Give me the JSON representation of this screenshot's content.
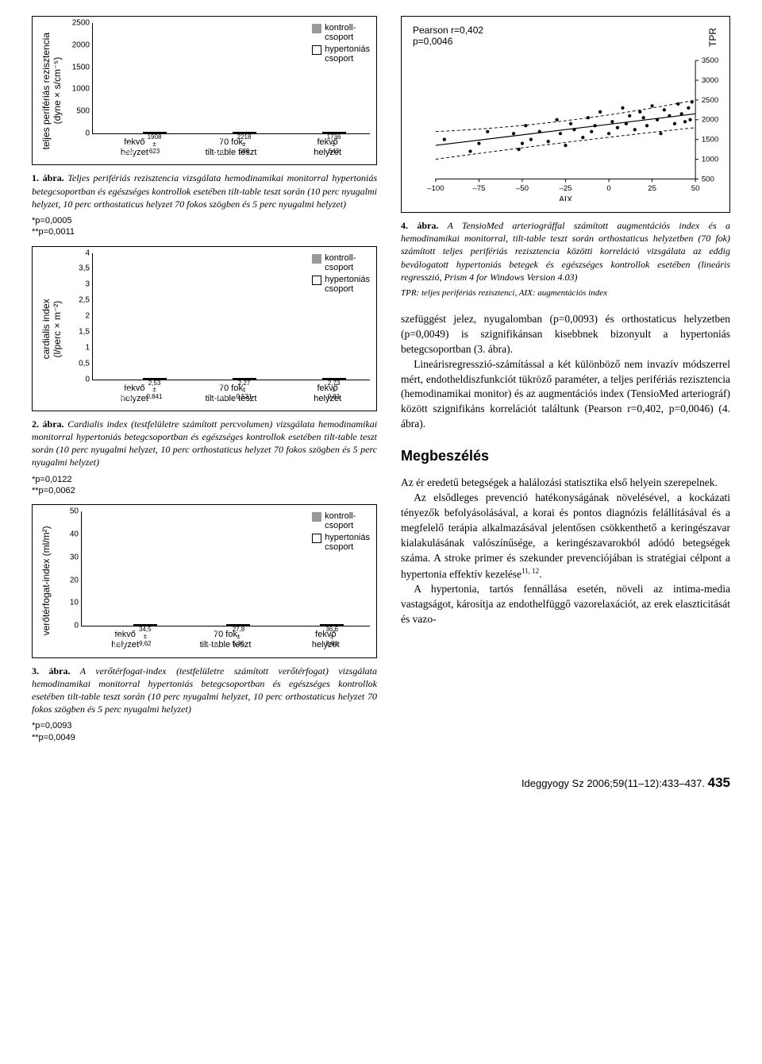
{
  "chart1": {
    "ylabel": "teljes perifériás rezisztencia\n(dyne×s/cm⁻⁵)",
    "ymax": 2500,
    "yticks": [
      0,
      500,
      1000,
      1500,
      2000,
      2500
    ],
    "groups": [
      {
        "k": {
          "v": 1213,
          "se": 298,
          "star": "*"
        },
        "h": {
          "v": 1908,
          "se": 623,
          "star": "*"
        }
      },
      {
        "k": {
          "v": 1580,
          "se": 336,
          "star": "**"
        },
        "h": {
          "v": 2218,
          "se": 589,
          "star": "**"
        }
      },
      {
        "k": {
          "v": 1056,
          "se": 282,
          "star": ""
        },
        "h": {
          "v": 1736,
          "se": 543,
          "star": ""
        }
      }
    ],
    "xlabels": [
      "fekvő\nhelyzet",
      "70 fok\ntilt-table teszt",
      "fekvő\nhelyzet"
    ],
    "legend_k": "kontroll-\ncsoport",
    "legend_h": "hypertoniás\ncsoport",
    "caption": "1. ábra. Teljes perifériás rezisztencia vizsgálata hemodinamikai monitorral hypertoniás betegcsoportban és egészséges kontrollok esetében tilt-table teszt során (10 perc nyugalmi helyzet, 10 perc orthostaticus helyzet 70 fokos szögben és 5 perc nyugalmi helyzet)",
    "p1": "*p=0,0005",
    "p2": "**p=0,0011"
  },
  "chart2": {
    "ylabel": "cardialis index\n(l/perc×m⁻²)",
    "ymax": 4,
    "yticks": [
      0,
      0.5,
      1,
      1.5,
      2,
      2.5,
      3,
      3.5,
      4
    ],
    "groups": [
      {
        "k": {
          "v": 3.39,
          "se": 0.825,
          "star": "*"
        },
        "h": {
          "v": 2.53,
          "se": 0.841,
          "star": "*"
        }
      },
      {
        "k": {
          "v": 2.96,
          "se": 0.645,
          "star": "**"
        },
        "h": {
          "v": 2.27,
          "se": 0.531,
          "star": "**"
        }
      },
      {
        "k": {
          "v": 3.56,
          "se": 0.8,
          "star": ""
        },
        "h": {
          "v": 2.73,
          "se": 0.81,
          "star": ""
        }
      }
    ],
    "xlabels": [
      "fekvő\nhelyzet",
      "70 fok\ntilt-table teszt",
      "fekvő\nhelyzet"
    ],
    "caption": "2. ábra. Cardialis index (testfelületre számított percvolumen) vizsgálata hemodinamikai monitorral hypertoniás betegcsoportban és egészséges kontrollok esetében tilt-table teszt során (10 perc nyugalmi helyzet, 10 perc orthostaticus helyzet 70 fokos szögben és 5 perc nyugalmi helyzet)",
    "p1": "*p=0,0122",
    "p2": "**p=0,0062"
  },
  "chart3": {
    "ylabel": "verőtérfogat-index (ml/m²)",
    "ymax": 50,
    "yticks": [
      0,
      10,
      20,
      30,
      40,
      50
    ],
    "groups": [
      {
        "k": {
          "v": 45.1,
          "se": 10.1,
          "star": "*"
        },
        "h": {
          "v": 34.5,
          "se": 9.62,
          "star": "*"
        }
      },
      {
        "k": {
          "v": 34.7,
          "se": 6.17,
          "star": "**"
        },
        "h": {
          "v": 27.8,
          "se": 5.35,
          "star": "**"
        }
      },
      {
        "k": {
          "v": 48.17,
          "se": 10.4,
          "star": ""
        },
        "h": {
          "v": 36.6,
          "se": 9.81,
          "star": ""
        }
      }
    ],
    "xlabels": [
      "fekvő\nhelyzet",
      "70 fok\ntilt-table teszt",
      "fekvő\nhelyzet"
    ],
    "caption": "3. ábra. A verőtérfogat-index (testfelületre számított verőtérfogat) vizsgálata hemodinamikai monitorral hypertoniás betegcsoportban és egészséges kontrollok esetében tilt-table teszt során (10 perc nyugalmi helyzet, 10 perc orthostaticus helyzet 70 fokos szögben és 5 perc nyugalmi helyzet)",
    "p1": "*p=0,0093",
    "p2": "**p=0,0049"
  },
  "scatter": {
    "pearson": "Pearson r=0,402",
    "pval": "p=0,0046",
    "ylabel_right": "TPR",
    "xlabel": "AIX",
    "yticks": [
      500,
      1000,
      1500,
      2000,
      2500,
      3000,
      3500
    ],
    "xticks": [
      -100,
      -75,
      -50,
      -25,
      0,
      25,
      50
    ],
    "points": [
      [
        -95,
        1500
      ],
      [
        -75,
        1400
      ],
      [
        -80,
        1200
      ],
      [
        -70,
        1700
      ],
      [
        -55,
        1650
      ],
      [
        -50,
        1400
      ],
      [
        -48,
        1850
      ],
      [
        -52,
        1250
      ],
      [
        -45,
        1500
      ],
      [
        -40,
        1700
      ],
      [
        -35,
        1450
      ],
      [
        -30,
        2000
      ],
      [
        -28,
        1650
      ],
      [
        -25,
        1350
      ],
      [
        -22,
        1900
      ],
      [
        -20,
        1750
      ],
      [
        -15,
        1550
      ],
      [
        -12,
        2050
      ],
      [
        -10,
        1700
      ],
      [
        -8,
        1850
      ],
      [
        -5,
        2200
      ],
      [
        0,
        1650
      ],
      [
        2,
        1950
      ],
      [
        5,
        1800
      ],
      [
        8,
        2300
      ],
      [
        10,
        1900
      ],
      [
        12,
        2100
      ],
      [
        15,
        1750
      ],
      [
        18,
        2200
      ],
      [
        20,
        2050
      ],
      [
        22,
        1850
      ],
      [
        25,
        2350
      ],
      [
        28,
        2000
      ],
      [
        30,
        1650
      ],
      [
        32,
        2250
      ],
      [
        35,
        2100
      ],
      [
        38,
        1900
      ],
      [
        40,
        2400
      ],
      [
        42,
        2150
      ],
      [
        44,
        1950
      ],
      [
        46,
        2300
      ],
      [
        47,
        2000
      ],
      [
        48,
        2450
      ]
    ],
    "caption": "4. ábra. A TensioMed arteriográffal számított augmentációs index és a hemodinamikai monitorral, tilt-table teszt során orthostaticus helyzetben (70 fok) számított teljes perifériás rezisztencia közötti korreláció vizsgálata az eddig beválogatott hypertoniás betegek és egészséges kontrollok esetében (lineáris regresszió, Prism 4 for Windows Version 4.03)",
    "note": "TPR: teljes perifériás rezisztenci, AIX: augmentációs index"
  },
  "body": {
    "p1": "szefüggést jelez, nyugalomban (p=0,0093) és orthostaticus helyzetben (p=0,0049) is szignifikánsan kisebbnek bizonyult a hypertoniás betegcsoportban (3. ábra).",
    "p2": "Lineárisregresszió-számítással a két különböző nem invazív módszerrel mért, endotheldiszfunkciót tükröző paraméter, a teljes perifériás rezisztencia (hemodinamikai monitor) és az augmentációs index (TensioMed arteriográf) között szignifikáns korrelációt találtunk (Pearson r=0,402, p=0,0046) (4. ábra).",
    "section": "Megbeszélés",
    "p3": "Az ér eredetű betegségek a halálozási statisztika első helyein szerepelnek.",
    "p4": "Az elsődleges prevenció hatékonyságának növelésével, a kockázati tényezők befolyásolásával, a korai és pontos diagnózis felállításával és a megfelelő terápia alkalmazásával jelentősen csökkenthető a keringészavar kialakulásának valószínűsége, a keringészavarokból adódó betegségek száma. A stroke primer és szekunder prevenciójában is stratégiai célpont a hypertonia effektív kezelése",
    "p4_refs": "11, 12",
    "p5": "A hypertonia, tartós fennállása esetén, növeli az intima-media vastagságot, károsítja az endothelfüggő vazorelaxációt, az erek elaszticitását és vazo-"
  },
  "footer": {
    "journal": "Ideggyogy Sz 2006;59(11–12):433–437.",
    "page": "435"
  }
}
